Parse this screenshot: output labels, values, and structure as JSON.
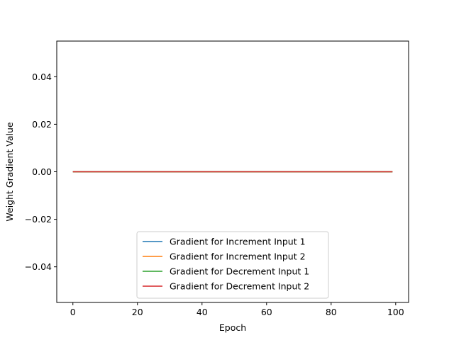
{
  "chart_data": {
    "type": "line",
    "title": "",
    "xlabel": "Epoch",
    "ylabel": "Weight Gradient Value",
    "xlim": [
      -5,
      104
    ],
    "ylim": [
      -0.055,
      0.055
    ],
    "x_ticks": [
      0,
      20,
      40,
      60,
      80,
      100
    ],
    "x_tick_labels": [
      "0",
      "20",
      "40",
      "60",
      "80",
      "100"
    ],
    "y_ticks": [
      -0.04,
      -0.02,
      0.0,
      0.02,
      0.04
    ],
    "y_tick_labels": [
      "−0.04",
      "−0.02",
      "0.00",
      "0.02",
      "0.04"
    ],
    "grid": false,
    "legend_position": "lower-center",
    "x": {
      "start": 0,
      "end": 99,
      "step": 1
    },
    "series": [
      {
        "name": "Gradient for Increment Input 1",
        "color": "#1f77b4",
        "constant_value": 0.0
      },
      {
        "name": "Gradient for Increment Input 2",
        "color": "#ff7f0e",
        "constant_value": 0.0
      },
      {
        "name": "Gradient for Decrement Input 1",
        "color": "#2ca02c",
        "constant_value": 0.0
      },
      {
        "name": "Gradient for Decrement Input 2",
        "color": "#d62728",
        "constant_value": 0.0
      }
    ]
  }
}
